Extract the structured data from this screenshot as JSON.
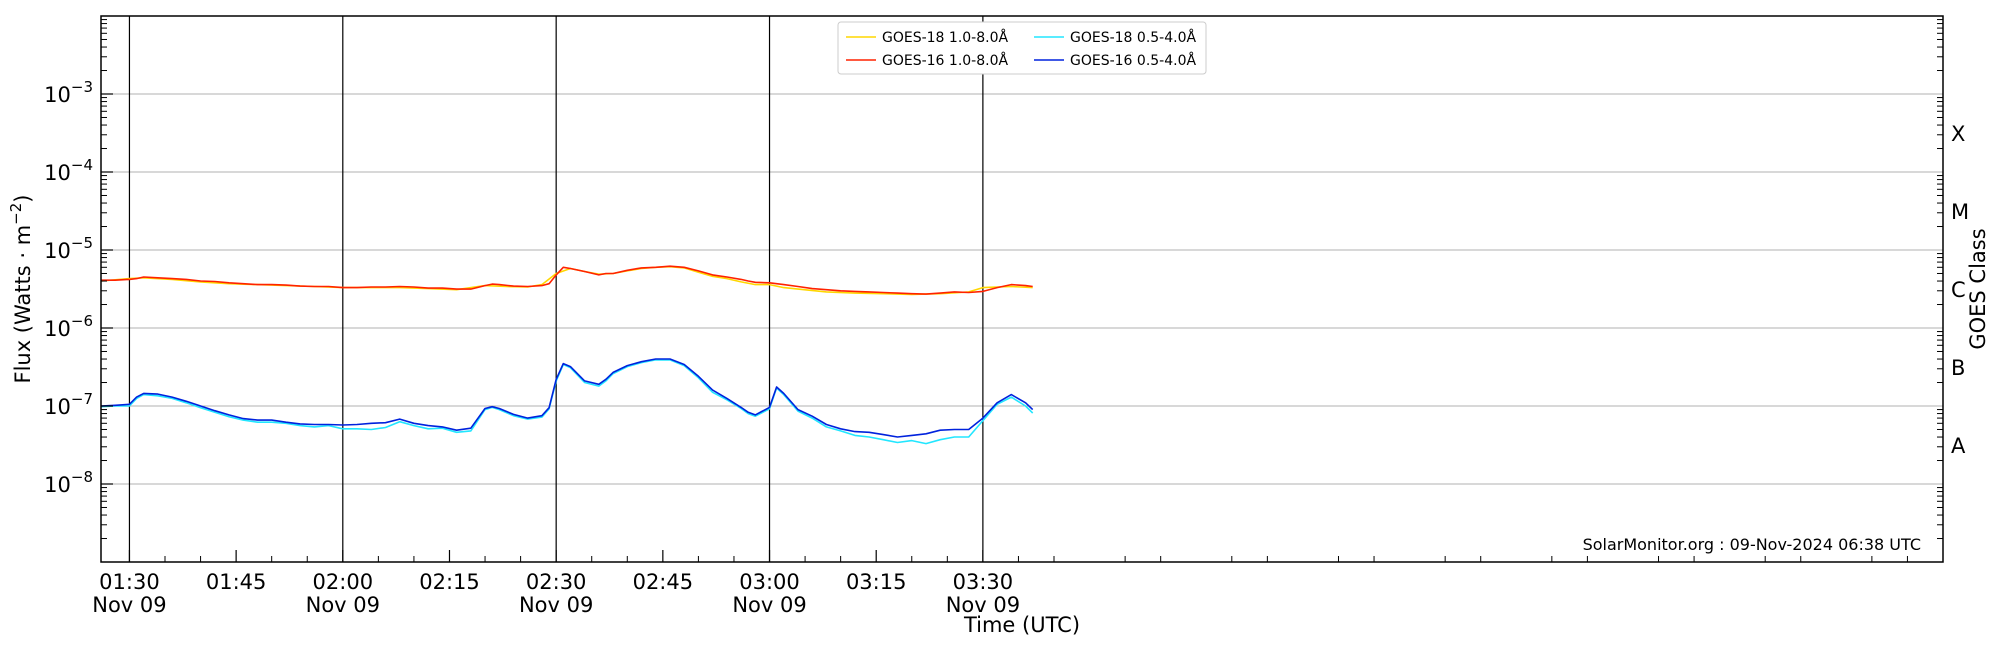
{
  "chart_data": {
    "type": "line",
    "xlabel": "Time (UTC)",
    "ylabel_prefix": "Flux (Watts · m",
    "ylabel_sup": "−2",
    "ylabel_suffix": ")",
    "right_label": "GOES Class",
    "credit": "SolarMonitor.org : 09-Nov-2024 06:38 UTC",
    "log_y": true,
    "ylim": [
      1e-09,
      0.01
    ],
    "xlim_minutes": [
      86,
      345
    ],
    "grid": "horizontal at decades",
    "x_ticks": [
      {
        "t": 90,
        "time": "01:30",
        "date": "Nov 09"
      },
      {
        "t": 105,
        "time": "01:45",
        "date": ""
      },
      {
        "t": 120,
        "time": "02:00",
        "date": "Nov 09"
      },
      {
        "t": 135,
        "time": "02:15",
        "date": ""
      },
      {
        "t": 150,
        "time": "02:30",
        "date": "Nov 09"
      },
      {
        "t": 165,
        "time": "02:45",
        "date": ""
      },
      {
        "t": 180,
        "time": "03:00",
        "date": "Nov 09"
      },
      {
        "t": 195,
        "time": "03:15",
        "date": ""
      },
      {
        "t": 210,
        "time": "03:30",
        "date": "Nov 09"
      }
    ],
    "y_ticks": [
      {
        "exp": -3,
        "base": "10",
        "sup": "−3"
      },
      {
        "exp": -4,
        "base": "10",
        "sup": "−4"
      },
      {
        "exp": -5,
        "base": "10",
        "sup": "−5"
      },
      {
        "exp": -6,
        "base": "10",
        "sup": "−6"
      },
      {
        "exp": -7,
        "base": "10",
        "sup": "−7"
      },
      {
        "exp": -8,
        "base": "10",
        "sup": "−8"
      }
    ],
    "classes": [
      {
        "label": "X",
        "exp": -3.5
      },
      {
        "label": "M",
        "exp": -4.5
      },
      {
        "label": "C",
        "exp": -5.5
      },
      {
        "label": "B",
        "exp": -6.5
      },
      {
        "label": "A",
        "exp": -7.5
      }
    ],
    "legend": [
      {
        "name": "GOES-18 1.0-8.0Å",
        "color": "#ffd700"
      },
      {
        "name": "GOES-16 1.0-8.0Å",
        "color": "#ff2200"
      },
      {
        "name": "GOES-18 0.5-4.0Å",
        "color": "#22e6ff"
      },
      {
        "name": "GOES-16 0.5-4.0Å",
        "color": "#0022dd"
      }
    ],
    "series": [
      {
        "name": "GOES-18 1.0-8.0Å",
        "color": "#ffd700",
        "x": [
          86,
          90,
          92,
          96,
          100,
          104,
          108,
          112,
          116,
          120,
          124,
          128,
          132,
          136,
          140,
          143,
          146,
          148,
          150,
          152,
          154,
          156,
          158,
          160,
          162,
          164,
          166,
          168,
          170,
          172,
          174,
          176,
          178,
          180,
          182,
          184,
          188,
          192,
          196,
          200,
          204,
          208,
          210,
          214,
          217
        ],
        "y": [
          4e-06,
          4.3e-06,
          4.4e-06,
          4.2e-06,
          3.9e-06,
          3.7e-06,
          3.6e-06,
          3.5e-06,
          3.4e-06,
          3.3e-06,
          3.3e-06,
          3.3e-06,
          3.2e-06,
          3.1e-06,
          3.5e-06,
          3.4e-06,
          3.35e-06,
          3.6e-06,
          5e-06,
          5.8e-06,
          5.3e-06,
          4.9e-06,
          5e-06,
          5.4e-06,
          5.8e-06,
          6e-06,
          6.1e-06,
          5.9e-06,
          5.2e-06,
          4.6e-06,
          4.3e-06,
          3.9e-06,
          3.6e-06,
          3.6e-06,
          3.3e-06,
          3.15e-06,
          2.9e-06,
          2.8e-06,
          2.75e-06,
          2.7e-06,
          2.75e-06,
          2.9e-06,
          3.3e-06,
          3.4e-06,
          3.3e-06
        ]
      },
      {
        "name": "GOES-16 1.0-8.0Å",
        "color": "#ff2200",
        "x": [
          86,
          88,
          90,
          91,
          92,
          94,
          96,
          98,
          100,
          102,
          104,
          106,
          108,
          110,
          112,
          114,
          116,
          118,
          120,
          122,
          124,
          126,
          128,
          130,
          132,
          134,
          136,
          138,
          140,
          141,
          142,
          144,
          146,
          148,
          149,
          150,
          151,
          152,
          154,
          156,
          157,
          158,
          160,
          162,
          164,
          166,
          168,
          170,
          172,
          174,
          176,
          177,
          178,
          180,
          182,
          184,
          186,
          188,
          190,
          192,
          194,
          196,
          198,
          200,
          202,
          204,
          206,
          208,
          210,
          212,
          214,
          216,
          217
        ],
        "y": [
          4.1e-06,
          4.1e-06,
          4.2e-06,
          4.3e-06,
          4.5e-06,
          4.4e-06,
          4.3e-06,
          4.2e-06,
          4e-06,
          3.95e-06,
          3.8e-06,
          3.7e-06,
          3.6e-06,
          3.6e-06,
          3.55e-06,
          3.45e-06,
          3.4e-06,
          3.4e-06,
          3.3e-06,
          3.3e-06,
          3.35e-06,
          3.35e-06,
          3.4e-06,
          3.35e-06,
          3.25e-06,
          3.25e-06,
          3.15e-06,
          3.15e-06,
          3.5e-06,
          3.65e-06,
          3.6e-06,
          3.45e-06,
          3.4e-06,
          3.5e-06,
          3.7e-06,
          4.8e-06,
          6e-06,
          5.8e-06,
          5.3e-06,
          4.8e-06,
          5e-06,
          5e-06,
          5.5e-06,
          5.9e-06,
          6e-06,
          6.2e-06,
          6e-06,
          5.4e-06,
          4.8e-06,
          4.5e-06,
          4.2e-06,
          4e-06,
          3.85e-06,
          3.8e-06,
          3.6e-06,
          3.4e-06,
          3.2e-06,
          3.1e-06,
          3e-06,
          2.95e-06,
          2.9e-06,
          2.85e-06,
          2.8e-06,
          2.75e-06,
          2.72e-06,
          2.8e-06,
          2.9e-06,
          2.85e-06,
          2.95e-06,
          3.3e-06,
          3.6e-06,
          3.5e-06,
          3.4e-06
        ]
      },
      {
        "name": "GOES-18 0.5-4.0Å",
        "color": "#22e6ff",
        "x": [
          86,
          88,
          90,
          91,
          92,
          94,
          96,
          98,
          100,
          102,
          104,
          106,
          108,
          110,
          112,
          114,
          116,
          118,
          120,
          122,
          124,
          126,
          128,
          130,
          132,
          134,
          136,
          138,
          140,
          141,
          142,
          144,
          146,
          148,
          149,
          150,
          151,
          152,
          154,
          156,
          157,
          158,
          160,
          162,
          164,
          166,
          168,
          170,
          172,
          174,
          176,
          177,
          178,
          180,
          181,
          182,
          184,
          186,
          188,
          190,
          192,
          194,
          196,
          198,
          200,
          202,
          204,
          206,
          208,
          210,
          212,
          214,
          216,
          217
        ],
        "y": [
          9.8e-08,
          1e-07,
          1e-07,
          1.25e-07,
          1.4e-07,
          1.35e-07,
          1.25e-07,
          1.1e-07,
          9.5e-08,
          8.3e-08,
          7.3e-08,
          6.6e-08,
          6.2e-08,
          6.2e-08,
          6e-08,
          5.6e-08,
          5.4e-08,
          5.6e-08,
          5.1e-08,
          5.1e-08,
          5e-08,
          5.3e-08,
          6.3e-08,
          5.6e-08,
          5.1e-08,
          5.2e-08,
          4.6e-08,
          4.8e-08,
          9e-08,
          9.6e-08,
          9e-08,
          7.5e-08,
          6.8e-08,
          7.2e-08,
          9.2e-08,
          2.1e-07,
          3.4e-07,
          3.1e-07,
          2e-07,
          1.8e-07,
          2.1e-07,
          2.6e-07,
          3.2e-07,
          3.6e-07,
          3.9e-07,
          3.9e-07,
          3.3e-07,
          2.3e-07,
          1.5e-07,
          1.2e-07,
          9.3e-08,
          8e-08,
          7.4e-08,
          9.2e-08,
          1.7e-07,
          1.4e-07,
          8.6e-08,
          7e-08,
          5.4e-08,
          4.8e-08,
          4.2e-08,
          4e-08,
          3.7e-08,
          3.4e-08,
          3.6e-08,
          3.3e-08,
          3.7e-08,
          4e-08,
          4e-08,
          6.5e-08,
          1.05e-07,
          1.3e-07,
          1e-07,
          8.1e-08
        ]
      },
      {
        "name": "GOES-16 0.5-4.0Å",
        "color": "#0022dd",
        "x": [
          86,
          88,
          90,
          91,
          92,
          94,
          96,
          98,
          100,
          102,
          104,
          106,
          108,
          110,
          112,
          114,
          116,
          118,
          120,
          122,
          124,
          126,
          128,
          130,
          132,
          134,
          136,
          138,
          140,
          141,
          142,
          144,
          146,
          148,
          149,
          150,
          151,
          152,
          154,
          156,
          157,
          158,
          160,
          162,
          164,
          166,
          168,
          170,
          172,
          174,
          176,
          177,
          178,
          180,
          181,
          182,
          184,
          186,
          188,
          190,
          192,
          194,
          196,
          198,
          200,
          202,
          204,
          206,
          208,
          210,
          212,
          214,
          216,
          217
        ],
        "y": [
          1e-07,
          1.02e-07,
          1.05e-07,
          1.3e-07,
          1.45e-07,
          1.42e-07,
          1.3e-07,
          1.15e-07,
          1e-07,
          8.7e-08,
          7.7e-08,
          6.9e-08,
          6.6e-08,
          6.6e-08,
          6.2e-08,
          5.9e-08,
          5.8e-08,
          5.8e-08,
          5.7e-08,
          5.8e-08,
          6e-08,
          6.1e-08,
          6.8e-08,
          6e-08,
          5.6e-08,
          5.4e-08,
          4.9e-08,
          5.2e-08,
          9.3e-08,
          9.8e-08,
          9.3e-08,
          7.8e-08,
          7e-08,
          7.5e-08,
          9.5e-08,
          2.2e-07,
          3.5e-07,
          3.2e-07,
          2.1e-07,
          1.9e-07,
          2.2e-07,
          2.7e-07,
          3.3e-07,
          3.7e-07,
          4e-07,
          4e-07,
          3.4e-07,
          2.4e-07,
          1.6e-07,
          1.25e-07,
          9.6e-08,
          8.3e-08,
          7.7e-08,
          9.6e-08,
          1.75e-07,
          1.45e-07,
          9e-08,
          7.4e-08,
          5.8e-08,
          5.1e-08,
          4.7e-08,
          4.6e-08,
          4.3e-08,
          4e-08,
          4.2e-08,
          4.4e-08,
          4.9e-08,
          5e-08,
          5e-08,
          7e-08,
          1.1e-07,
          1.4e-07,
          1.1e-07,
          9e-08
        ]
      }
    ]
  }
}
